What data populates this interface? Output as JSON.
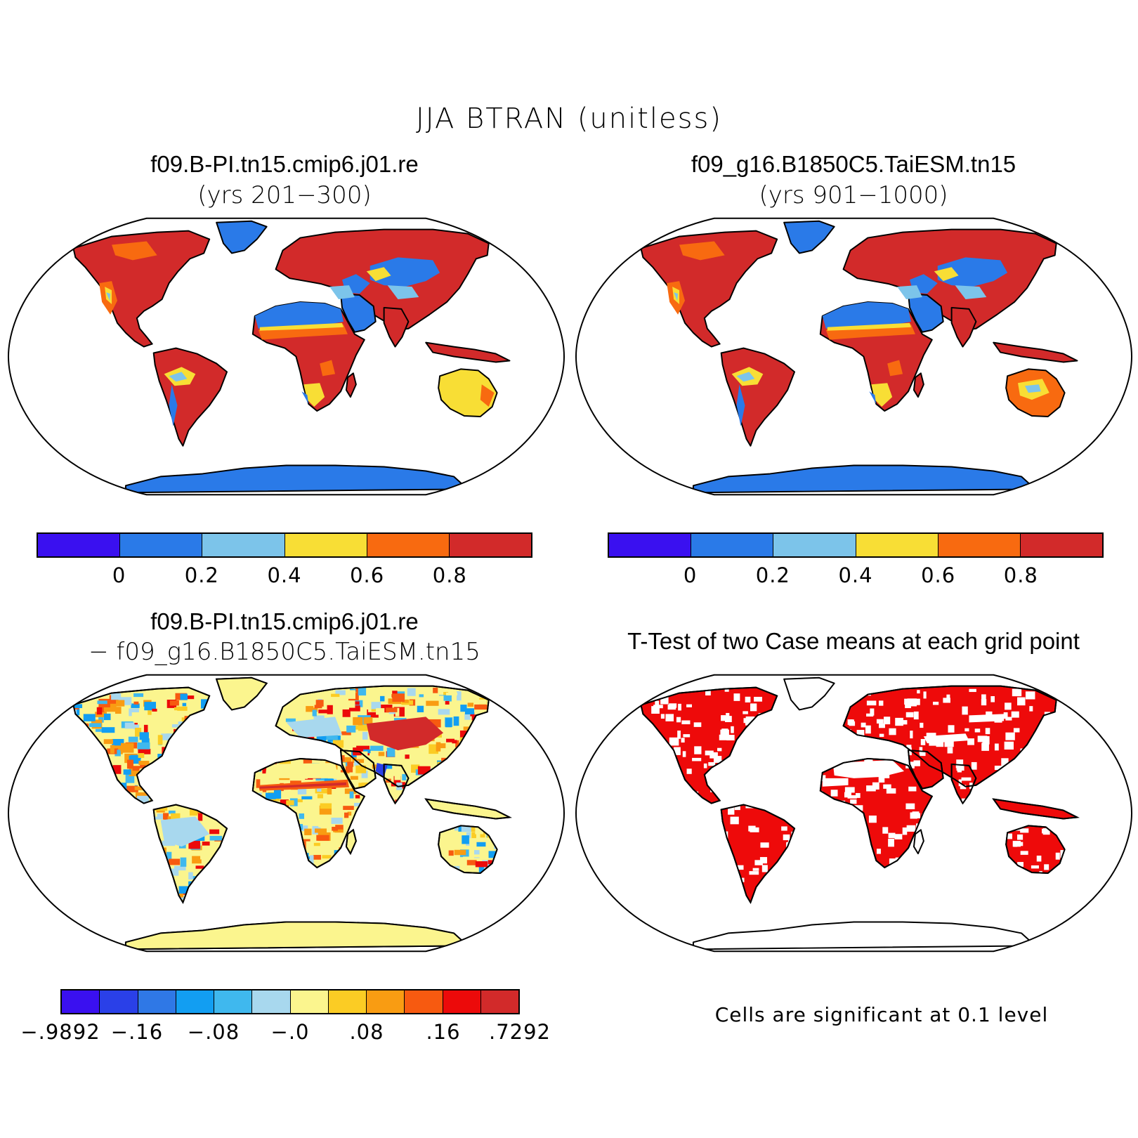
{
  "title": "JJA BTRAN (unitless)",
  "colors": {
    "c_deep_blue": "#3a10f0",
    "c_blue": "#2a7ae8",
    "c_lightblue": "#7cc4ea",
    "c_yellow": "#f8de35",
    "c_orange": "#f86a10",
    "c_red": "#d22a2a",
    "land_outline": "#000000",
    "sig_red": "#ee0a0a"
  },
  "panels": {
    "top_left": {
      "case": "f09.B-PI.tn15.cmip6.j01.re",
      "years": "(yrs 201−300)",
      "map_type": "btran"
    },
    "top_right": {
      "case": "f09_g16.B1850C5.TaiESM.tn15",
      "years": "(yrs 901−1000)",
      "map_type": "btran"
    },
    "bottom_left": {
      "case_a": "f09.B-PI.tn15.cmip6.j01.re",
      "case_b": "− f09_g16.B1850C5.TaiESM.tn15",
      "map_type": "difference"
    },
    "bottom_right": {
      "title": "T-Test of two Case means at each grid point",
      "note": "Cells are significant at 0.1 level",
      "map_type": "ttest"
    }
  },
  "colorbar_main": {
    "colors": [
      "#3a10f0",
      "#2a7ae8",
      "#7cc4ea",
      "#f8de35",
      "#f86a10",
      "#d22a2a"
    ],
    "ticks": [
      "0",
      "0.2",
      "0.4",
      "0.6",
      "0.8"
    ]
  },
  "colorbar_diff": {
    "colors": [
      "#3a10f0",
      "#2a40e8",
      "#2f78e6",
      "#129ef2",
      "#3fb8ee",
      "#a8d8ee",
      "#fbf58e",
      "#fbcc24",
      "#f99c12",
      "#f75a10",
      "#ec0a0a",
      "#d22a2a"
    ],
    "ticks": [
      "−.9892",
      "−.16",
      "−.08",
      "−.0",
      ".08",
      ".16",
      ".7292"
    ]
  }
}
